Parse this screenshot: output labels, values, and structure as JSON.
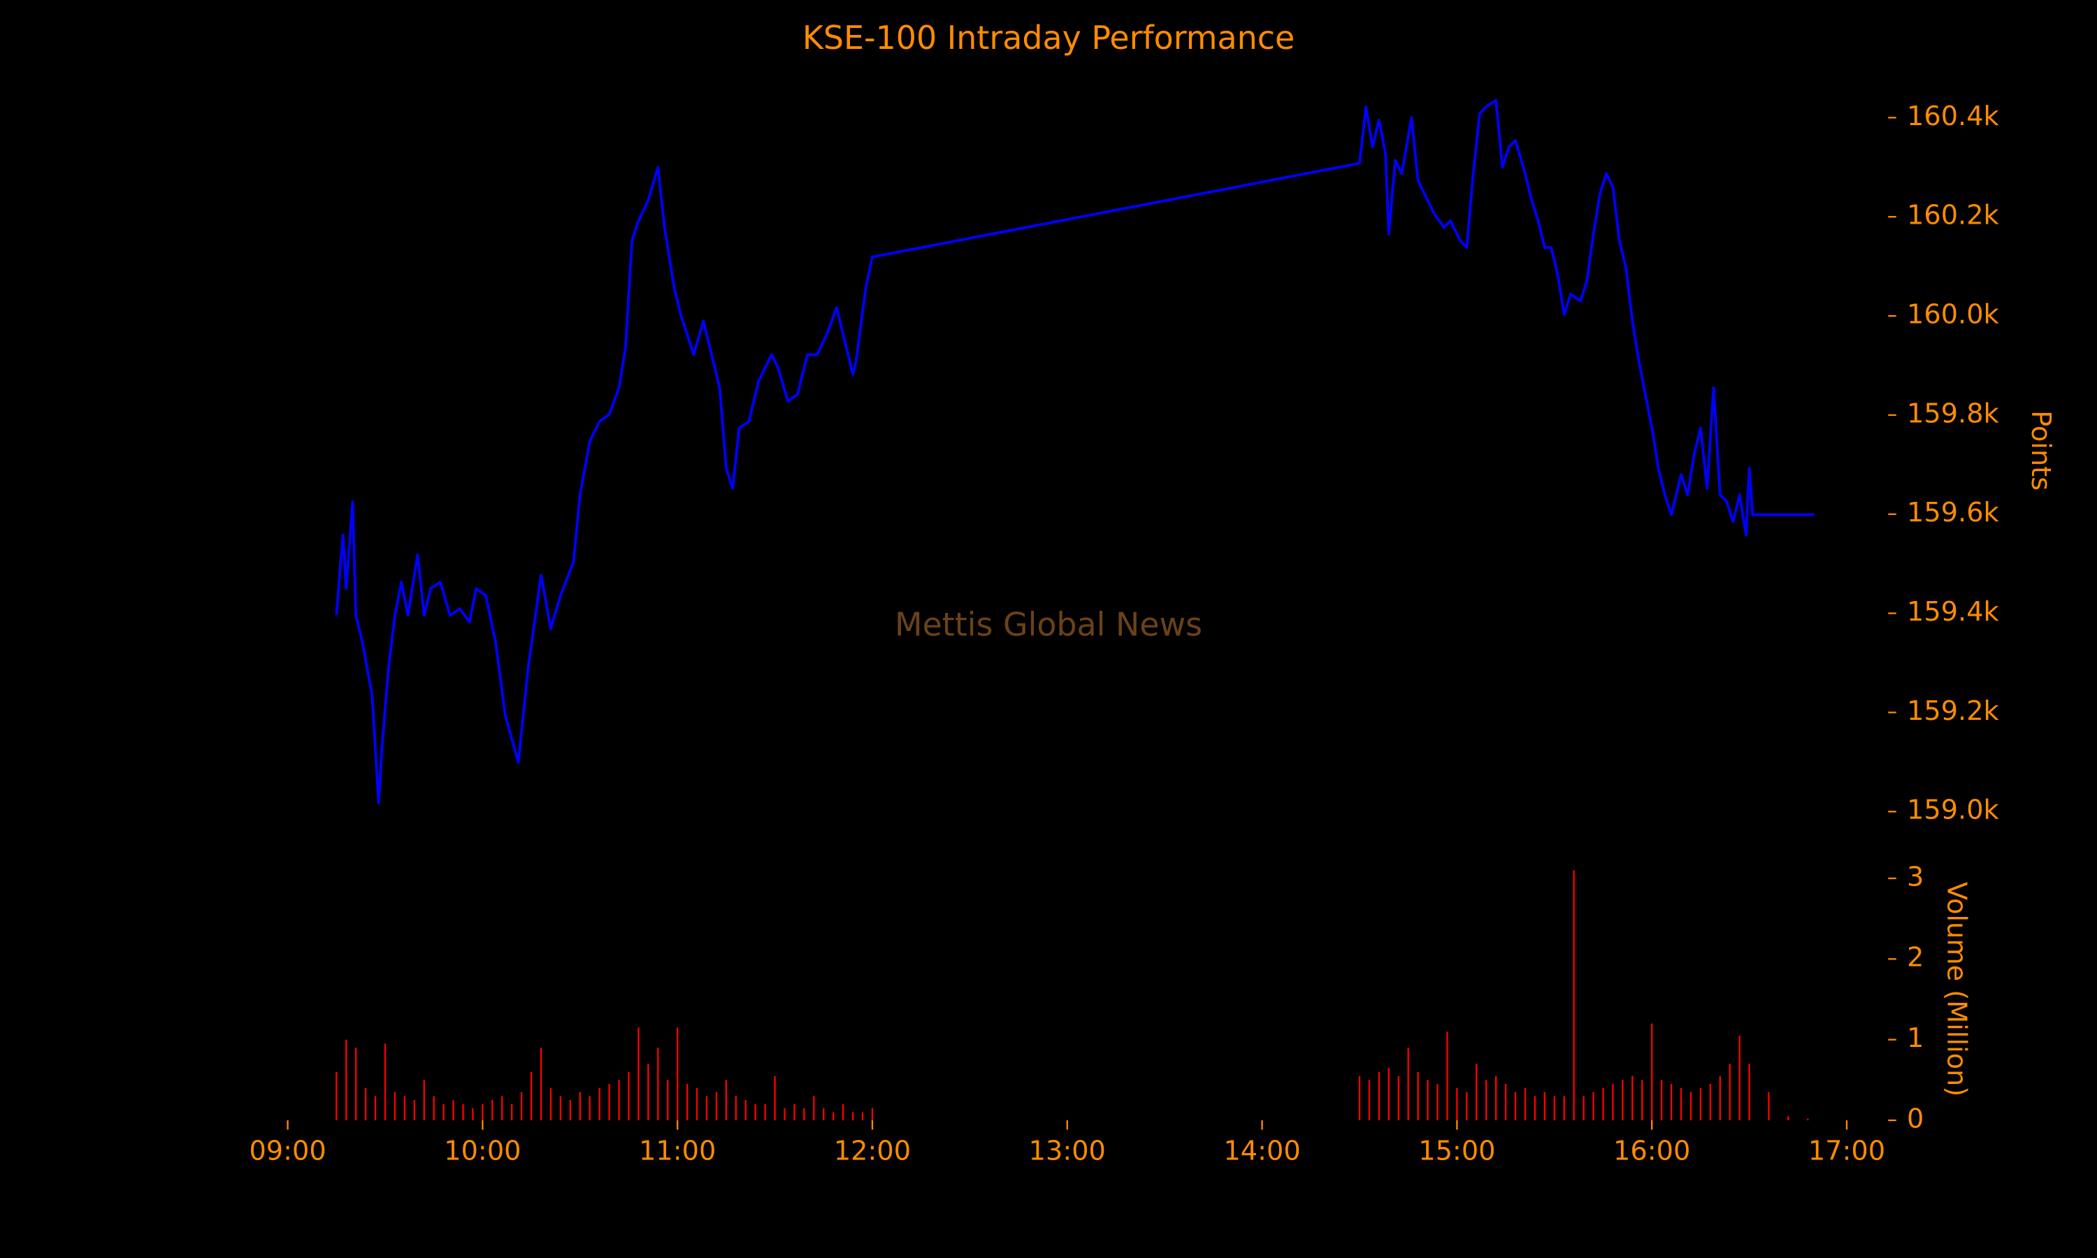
{
  "chart_data": [
    {
      "type": "line",
      "title": "KSE-100 Intraday Performance",
      "annotation": "Mettis Global News",
      "ylabel": "Points",
      "xlim": [
        "09:00",
        "17:00"
      ],
      "ylim": [
        158960,
        160480
      ],
      "yticks": [
        {
          "value": 159000,
          "label": "159.0k"
        },
        {
          "value": 159200,
          "label": "159.2k"
        },
        {
          "value": 159400,
          "label": "159.4k"
        },
        {
          "value": 159600,
          "label": "159.6k"
        },
        {
          "value": 159800,
          "label": "159.8k"
        },
        {
          "value": 160000,
          "label": "160.0k"
        },
        {
          "value": 160200,
          "label": "160.2k"
        },
        {
          "value": 160400,
          "label": "160.4k"
        }
      ],
      "series": [
        {
          "name": "KSE-100",
          "color": "#0000ff",
          "x": [
            "09:15",
            "09:17",
            "09:18",
            "09:20",
            "09:21",
            "09:23",
            "09:26",
            "09:28",
            "09:29",
            "09:31",
            "09:33",
            "09:35",
            "09:37",
            "09:40",
            "09:42",
            "09:44",
            "09:47",
            "09:50",
            "09:53",
            "09:56",
            "09:58",
            "10:01",
            "10:04",
            "10:07",
            "10:11",
            "10:14",
            "10:18",
            "10:21",
            "10:24",
            "10:28",
            "10:30",
            "10:33",
            "10:36",
            "10:39",
            "10:42",
            "10:44",
            "10:46",
            "10:48",
            "10:51",
            "10:54",
            "10:56",
            "10:59",
            "11:01",
            "11:05",
            "11:08",
            "11:10",
            "11:13",
            "11:15",
            "11:17",
            "11:19",
            "11:22",
            "11:25",
            "11:29",
            "11:31",
            "11:34",
            "11:37",
            "11:40",
            "11:43",
            "11:46",
            "11:49",
            "11:52",
            "11:54",
            "11:55",
            "11:58",
            "12:00",
            "14:30",
            "14:32",
            "14:34",
            "14:36",
            "14:38",
            "14:39",
            "14:41",
            "14:43",
            "14:46",
            "14:48",
            "14:51",
            "14:53",
            "14:56",
            "14:58",
            "15:01",
            "15:03",
            "15:05",
            "15:07",
            "15:09",
            "15:12",
            "15:14",
            "15:16",
            "15:18",
            "15:21",
            "15:23",
            "15:25",
            "15:27",
            "15:29",
            "15:31",
            "15:33",
            "15:35",
            "15:38",
            "15:40",
            "15:42",
            "15:44",
            "15:46",
            "15:48",
            "15:50",
            "15:52",
            "15:54",
            "15:56",
            "15:58",
            "16:00",
            "16:02",
            "16:04",
            "16:06",
            "16:09",
            "16:11",
            "16:13",
            "16:15",
            "16:17",
            "16:19",
            "16:21",
            "16:23",
            "16:25",
            "16:27",
            "16:29",
            "16:30",
            "16:31",
            "16:50"
          ],
          "values": [
            159396,
            159558,
            159450,
            159625,
            159396,
            159342,
            159234,
            159018,
            159126,
            159288,
            159396,
            159463,
            159396,
            159518,
            159396,
            159450,
            159463,
            159396,
            159409,
            159382,
            159450,
            159436,
            159342,
            159194,
            159099,
            159288,
            159477,
            159369,
            159436,
            159504,
            159639,
            159747,
            159787,
            159801,
            159855,
            159936,
            160152,
            160192,
            160233,
            160300,
            160179,
            160057,
            160003,
            159922,
            159990,
            159936,
            159855,
            159693,
            159652,
            159774,
            159787,
            159869,
            159922,
            159895,
            159828,
            159842,
            159922,
            159922,
            159963,
            160017,
            159936,
            159882,
            159909,
            160057,
            160119,
            160308,
            160422,
            160341,
            160395,
            160327,
            160165,
            160314,
            160287,
            160400,
            160273,
            160233,
            160206,
            160179,
            160192,
            160152,
            160138,
            160287,
            160408,
            160422,
            160435,
            160300,
            160341,
            160354,
            160287,
            160233,
            160192,
            160138,
            160138,
            160084,
            160003,
            160044,
            160030,
            160071,
            160165,
            160246,
            160287,
            160260,
            160152,
            160098,
            159990,
            159909,
            159842,
            159774,
            159693,
            159639,
            159599,
            159680,
            159639,
            159720,
            159774,
            159652,
            159855,
            159639,
            159626,
            159585,
            159639,
            159558,
            159693,
            159599,
            159599
          ]
        }
      ]
    },
    {
      "type": "bar",
      "ylabel": "Volume (Million)",
      "color": "#ff0000",
      "xlim": [
        "09:00",
        "17:00"
      ],
      "xticks": [
        "09:00",
        "10:00",
        "11:00",
        "12:00",
        "13:00",
        "14:00",
        "15:00",
        "16:00",
        "17:00"
      ],
      "ylim": [
        0,
        3.1
      ],
      "yticks": [
        0,
        1,
        2,
        3
      ],
      "x": [
        "09:15",
        "09:18",
        "09:21",
        "09:24",
        "09:27",
        "09:30",
        "09:33",
        "09:36",
        "09:39",
        "09:42",
        "09:45",
        "09:48",
        "09:51",
        "09:54",
        "09:57",
        "10:00",
        "10:03",
        "10:06",
        "10:09",
        "10:12",
        "10:15",
        "10:18",
        "10:21",
        "10:24",
        "10:27",
        "10:30",
        "10:33",
        "10:36",
        "10:39",
        "10:42",
        "10:45",
        "10:48",
        "10:51",
        "10:54",
        "10:57",
        "11:00",
        "11:03",
        "11:06",
        "11:09",
        "11:12",
        "11:15",
        "11:18",
        "11:21",
        "11:24",
        "11:27",
        "11:30",
        "11:33",
        "11:36",
        "11:39",
        "11:42",
        "11:45",
        "11:48",
        "11:51",
        "11:54",
        "11:57",
        "12:00",
        "14:30",
        "14:33",
        "14:36",
        "14:39",
        "14:42",
        "14:45",
        "14:48",
        "14:51",
        "14:54",
        "14:57",
        "15:00",
        "15:03",
        "15:06",
        "15:09",
        "15:12",
        "15:15",
        "15:18",
        "15:21",
        "15:24",
        "15:27",
        "15:30",
        "15:33",
        "15:36",
        "15:39",
        "15:42",
        "15:45",
        "15:48",
        "15:51",
        "15:54",
        "15:57",
        "16:00",
        "16:03",
        "16:06",
        "16:09",
        "16:12",
        "16:15",
        "16:18",
        "16:21",
        "16:24",
        "16:27",
        "16:30",
        "16:36",
        "16:42",
        "16:48"
      ],
      "values": [
        0.6,
        1.0,
        0.9,
        0.4,
        0.3,
        0.95,
        0.35,
        0.3,
        0.25,
        0.5,
        0.3,
        0.2,
        0.25,
        0.2,
        0.15,
        0.2,
        0.25,
        0.3,
        0.2,
        0.35,
        0.6,
        0.9,
        0.4,
        0.3,
        0.25,
        0.35,
        0.3,
        0.4,
        0.45,
        0.5,
        0.6,
        1.15,
        0.7,
        0.9,
        0.5,
        1.15,
        0.45,
        0.4,
        0.3,
        0.35,
        0.5,
        0.3,
        0.25,
        0.2,
        0.2,
        0.55,
        0.15,
        0.2,
        0.15,
        0.3,
        0.15,
        0.1,
        0.2,
        0.1,
        0.1,
        0.15,
        0.55,
        0.5,
        0.6,
        0.65,
        0.55,
        0.9,
        0.6,
        0.5,
        0.45,
        1.1,
        0.4,
        0.35,
        0.7,
        0.5,
        0.55,
        0.45,
        0.35,
        0.4,
        0.3,
        0.35,
        0.3,
        0.3,
        3.1,
        0.3,
        0.35,
        0.4,
        0.45,
        0.5,
        0.55,
        0.5,
        1.2,
        0.5,
        0.45,
        0.4,
        0.35,
        0.4,
        0.45,
        0.55,
        0.7,
        1.05,
        0.7,
        0.35,
        0.05,
        0.02
      ]
    }
  ]
}
